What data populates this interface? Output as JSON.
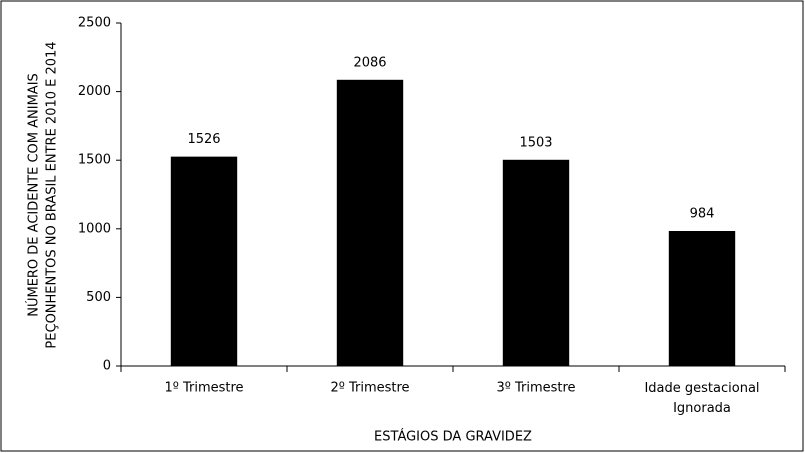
{
  "chart_data": {
    "type": "bar",
    "y_label": [
      "NÚMERO DE ACIDENTE COM ANIMAIS",
      "PEÇONHENTOS NO BRASIL ENTRE 2010 E 2014"
    ],
    "x_label": "ESTÁGIOS DA GRAVIDEZ",
    "categories": [
      "1º Trimestre",
      "2º Trimestre",
      "3º Trimestre",
      "Idade gestacional Ignorada"
    ],
    "values": [
      1526,
      2086,
      1503,
      984
    ],
    "color": "#000000",
    "ylim": [
      0,
      2500
    ],
    "yticks": [
      0,
      500,
      1000,
      1500,
      2000,
      2500
    ],
    "grid": false
  }
}
